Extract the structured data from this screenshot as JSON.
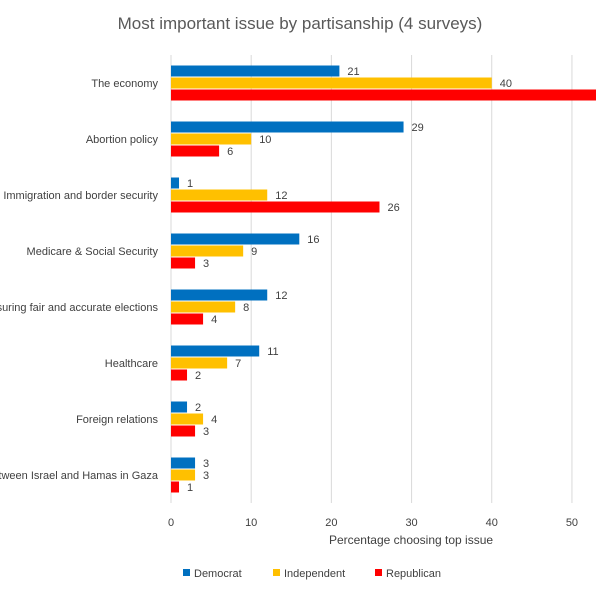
{
  "chart_data": {
    "type": "bar",
    "orientation": "horizontal",
    "title": "Most important issue by partisanship (4 surveys)",
    "xlabel": "Percentage choosing top issue",
    "ylabel": "",
    "xlim": [
      0,
      53
    ],
    "xticks": [
      "0",
      "10",
      "20",
      "30",
      "40",
      "50"
    ],
    "xtick_values": [
      0,
      10,
      20,
      30,
      40,
      50
    ],
    "grid": true,
    "legend_position": "bottom",
    "categories": [
      "The economy",
      "Abortion policy",
      "Immigration and border security",
      "Medicare & Social Security",
      "Ensuring fair and accurate elections",
      "Healthcare",
      "Foreign relations",
      "The war between Israel and Hamas in Gaza"
    ],
    "series": [
      {
        "name": "Democrat",
        "color": "#0070C0",
        "values": [
          21,
          29,
          1,
          16,
          12,
          11,
          2,
          3
        ]
      },
      {
        "name": "Independent",
        "color": "#FFC000",
        "values": [
          40,
          10,
          12,
          9,
          8,
          7,
          4,
          3
        ]
      },
      {
        "name": "Republican",
        "color": "#FF0000",
        "values": [
          53,
          6,
          26,
          3,
          4,
          2,
          3,
          1
        ]
      }
    ],
    "data_labels": [
      [
        "21",
        "40",
        ""
      ],
      [
        "29",
        "10",
        "6"
      ],
      [
        "1",
        "12",
        "26"
      ],
      [
        "16",
        "9",
        "3"
      ],
      [
        "12",
        "8",
        "4"
      ],
      [
        "11",
        "7",
        "2"
      ],
      [
        "2",
        "4",
        "3"
      ],
      [
        "3",
        "3",
        "1"
      ]
    ]
  }
}
